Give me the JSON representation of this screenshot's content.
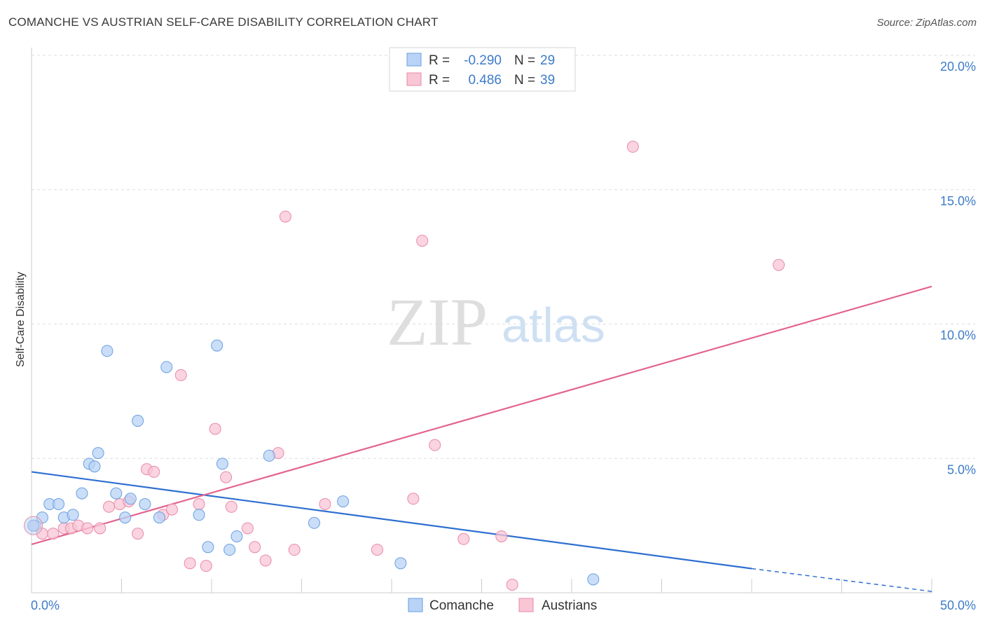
{
  "title": "COMANCHE VS AUSTRIAN SELF-CARE DISABILITY CORRELATION CHART",
  "source": "Source: ZipAtlas.com",
  "watermark": {
    "zip": "ZIP",
    "atlas": "atlas"
  },
  "colors": {
    "comanche_fill": "#b8d3f5",
    "comanche_stroke": "#6a9fe0",
    "comanche_line": "#2e6fd1",
    "austrian_fill": "#f8c6d5",
    "austrian_stroke": "#e98aa8",
    "austrian_line": "#e3648e",
    "tick_text": "#3d7cc9",
    "grid": "#dddddd"
  },
  "legend": {
    "rows": [
      {
        "r_label": "R =",
        "r_value": "-0.290",
        "n_label": "N =",
        "n_value": "29"
      },
      {
        "r_label": "R =",
        "r_value": "0.486",
        "n_label": "N =",
        "n_value": "39"
      }
    ],
    "bottom": [
      "Comanche",
      "Austrians"
    ]
  },
  "chart_data": {
    "type": "scatter",
    "title": "COMANCHE VS AUSTRIAN SELF-CARE DISABILITY CORRELATION CHART",
    "xlabel": "",
    "ylabel": "Self-Care Disability",
    "xlim": [
      0,
      50
    ],
    "ylim": [
      0,
      20.5
    ],
    "x_tick_labels": [
      "0.0%",
      "50.0%"
    ],
    "y_ticks": [
      5,
      10,
      15,
      20
    ],
    "y_tick_labels": [
      "5.0%",
      "10.0%",
      "15.0%",
      "20.0%"
    ],
    "grid": "horizontal dashed",
    "legend_position": "top-center",
    "series": [
      {
        "name": "Comanche",
        "r": -0.29,
        "n": 29,
        "trend": {
          "x": [
            0,
            40,
            50
          ],
          "y": [
            4.5,
            0.9,
            0.05
          ],
          "dashed_from_x": 40
        },
        "points": [
          [
            0.1,
            2.5
          ],
          [
            0.6,
            2.8
          ],
          [
            1.0,
            3.3
          ],
          [
            1.5,
            3.3
          ],
          [
            1.8,
            2.8
          ],
          [
            2.3,
            2.9
          ],
          [
            2.8,
            3.7
          ],
          [
            3.2,
            4.8
          ],
          [
            3.5,
            4.7
          ],
          [
            3.7,
            5.2
          ],
          [
            4.2,
            9.0
          ],
          [
            4.7,
            3.7
          ],
          [
            5.2,
            2.8
          ],
          [
            5.5,
            3.5
          ],
          [
            5.9,
            6.4
          ],
          [
            6.3,
            3.3
          ],
          [
            7.1,
            2.8
          ],
          [
            7.5,
            8.4
          ],
          [
            9.3,
            2.9
          ],
          [
            9.8,
            1.7
          ],
          [
            10.3,
            9.2
          ],
          [
            10.6,
            4.8
          ],
          [
            11.0,
            1.6
          ],
          [
            11.4,
            2.1
          ],
          [
            13.2,
            5.1
          ],
          [
            15.7,
            2.6
          ],
          [
            17.3,
            3.4
          ],
          [
            20.5,
            1.1
          ],
          [
            31.2,
            0.5
          ]
        ]
      },
      {
        "name": "Austrians",
        "r": 0.486,
        "n": 39,
        "trend": {
          "x": [
            0,
            50
          ],
          "y": [
            1.8,
            11.4
          ]
        },
        "points": [
          [
            0.2,
            2.5
          ],
          [
            0.6,
            2.2
          ],
          [
            1.2,
            2.2
          ],
          [
            1.8,
            2.4
          ],
          [
            2.2,
            2.4
          ],
          [
            2.6,
            2.5
          ],
          [
            3.1,
            2.4
          ],
          [
            3.8,
            2.4
          ],
          [
            4.3,
            3.2
          ],
          [
            4.9,
            3.3
          ],
          [
            5.4,
            3.4
          ],
          [
            5.9,
            2.2
          ],
          [
            6.4,
            4.6
          ],
          [
            6.8,
            4.5
          ],
          [
            7.3,
            2.9
          ],
          [
            7.8,
            3.1
          ],
          [
            8.3,
            8.1
          ],
          [
            8.8,
            1.1
          ],
          [
            9.3,
            3.3
          ],
          [
            9.7,
            1.0
          ],
          [
            10.2,
            6.1
          ],
          [
            10.8,
            4.3
          ],
          [
            11.1,
            3.2
          ],
          [
            12.0,
            2.4
          ],
          [
            12.4,
            1.7
          ],
          [
            13.0,
            1.2
          ],
          [
            13.7,
            5.2
          ],
          [
            14.1,
            14.0
          ],
          [
            14.6,
            1.6
          ],
          [
            16.3,
            3.3
          ],
          [
            19.2,
            1.6
          ],
          [
            21.2,
            3.5
          ],
          [
            21.7,
            13.1
          ],
          [
            22.4,
            5.5
          ],
          [
            24.0,
            2.0
          ],
          [
            26.1,
            2.1
          ],
          [
            26.7,
            0.3
          ],
          [
            33.4,
            16.6
          ],
          [
            41.5,
            12.2
          ]
        ]
      }
    ]
  }
}
